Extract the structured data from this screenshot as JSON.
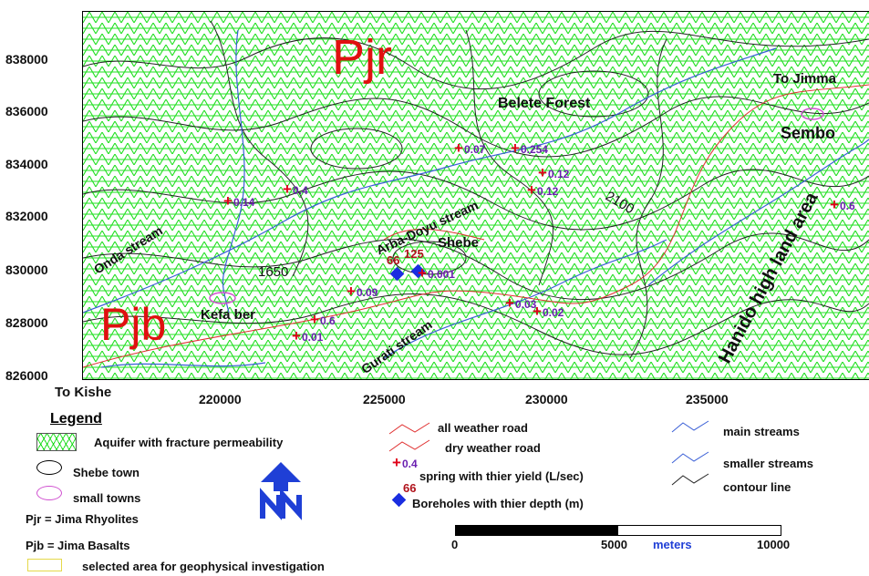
{
  "axes": {
    "y_ticks": [
      "838000",
      "836000",
      "834000",
      "832000",
      "830000",
      "828000",
      "826000"
    ],
    "x_ticks": [
      "220000",
      "225000",
      "230000",
      "235000"
    ]
  },
  "map_labels": {
    "pjr": "Pjr",
    "pjb": "Pjb",
    "belete_forest": "Belete Forest",
    "to_jimma": "To Jimma",
    "sembo": "Sembo",
    "shebe": "Shebe",
    "kefa_ber": "Kefa ber",
    "onda_stream": "Onda stream",
    "arba_doyu": "Arba-Doyu stream",
    "gurati": "Gurati stream",
    "hanido": "Hanido high land area",
    "contour_1650": "1650",
    "contour_2100": "2100",
    "to_kishe": "To Kishe"
  },
  "springs": [
    "0.07",
    "0.254",
    "0.12",
    "0.12",
    "0.14",
    "0.4",
    "0.6",
    "0.09",
    "0.001",
    "0.03",
    "0.02",
    "0.6",
    "0.01"
  ],
  "boreholes": [
    "66",
    "125"
  ],
  "legend": {
    "title": "Legend",
    "aquifer": "Aquifer with fracture permeability",
    "shebe_town": "Shebe town",
    "small_towns": "small towns",
    "pjr_def": "Pjr = Jima Rhyolites",
    "pjb_def": "Pjb = Jima Basalts",
    "selected_area": "selected area for geophysical investigation",
    "all_weather": "all weather road",
    "dry_weather": "dry weather road",
    "spring_sample": "0.4",
    "spring": "spring with thier yield (L/sec)",
    "borehole_sample": "66",
    "boreholes": "Boreholes with thier depth (m)",
    "main_streams": "main streams",
    "smaller_streams": "smaller streams",
    "contour": "contour line"
  },
  "scale_bar": {
    "start": "0",
    "mid": "5000",
    "unit": "meters",
    "end": "10000"
  },
  "colors": {
    "aquifer": "#22e022",
    "road": "#e03030",
    "stream": "#3a5fd6",
    "spring": "#e0001a",
    "borehole": "#1a2de0",
    "north_arrow": "#1f3fd6"
  }
}
